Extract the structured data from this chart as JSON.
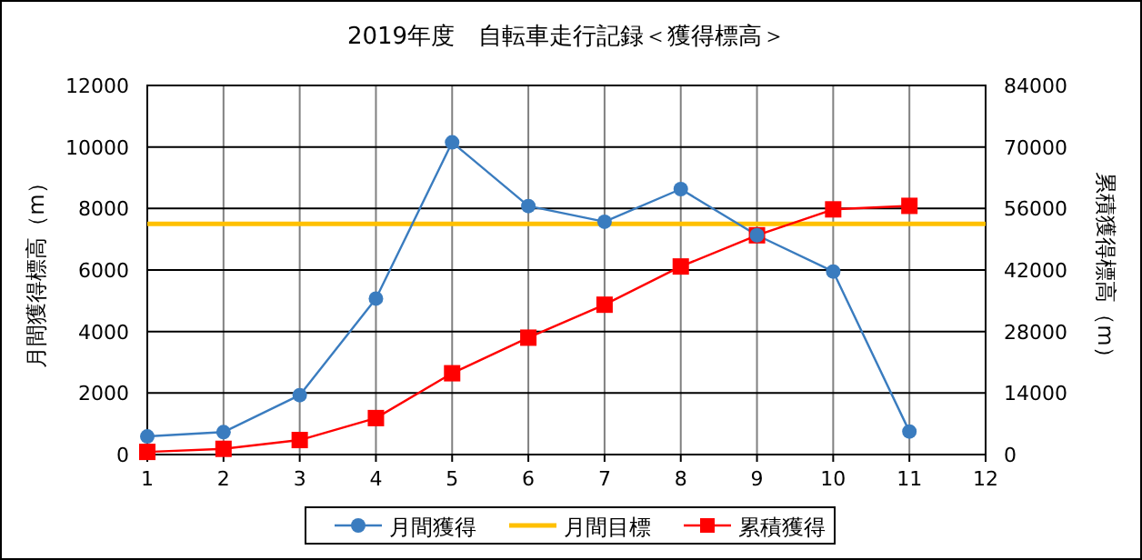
{
  "chart_data": {
    "type": "line",
    "title": "2019年度　自転車走行記録＜獲得標高＞",
    "ylabel": "月間獲得標高（m）",
    "y2label": "累積獲得標高（m）",
    "x": [
      1,
      2,
      3,
      4,
      5,
      6,
      7,
      8,
      9,
      10,
      11
    ],
    "series": [
      {
        "name": "月間獲得",
        "color": "#3a7cbf",
        "marker": "circle",
        "values": [
          590,
          730,
          1930,
          5070,
          10150,
          8080,
          7570,
          8630,
          7130,
          5950,
          750
        ]
      },
      {
        "name": "累積獲得",
        "color": "#ff0000",
        "marker": "square",
        "axis": "y2",
        "values": [
          600,
          1300,
          3300,
          8300,
          18500,
          26600,
          34100,
          42800,
          49900,
          55800,
          56600
        ]
      }
    ],
    "ref_lines": [
      {
        "axis": "y",
        "value": 7500,
        "label": "月間目標",
        "color": "#ffc000"
      }
    ],
    "xlim": [
      1,
      12
    ],
    "xticks": [
      1,
      2,
      3,
      4,
      5,
      6,
      7,
      8,
      9,
      10,
      11,
      12
    ],
    "ylim": [
      0,
      12000
    ],
    "yticks": [
      0,
      2000,
      4000,
      6000,
      8000,
      10000,
      12000
    ],
    "y2lim": [
      0,
      84000
    ],
    "y2ticks": [
      0,
      14000,
      28000,
      42000,
      56000,
      70000,
      84000
    ],
    "grid": true,
    "legend": "bottom"
  }
}
